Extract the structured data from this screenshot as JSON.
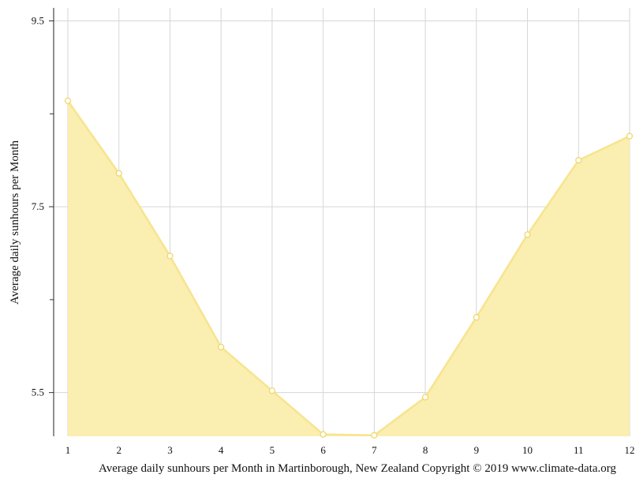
{
  "chart_data": {
    "type": "area",
    "x": [
      1,
      2,
      3,
      4,
      5,
      6,
      7,
      8,
      9,
      10,
      11,
      12
    ],
    "values": [
      8.64,
      7.86,
      6.97,
      5.99,
      5.52,
      5.05,
      5.04,
      5.45,
      6.31,
      7.2,
      8.0,
      8.26
    ],
    "ylabel": "Average daily sunhours per Month",
    "xlabel": "Average daily sunhours per Month in Martinborough, New Zealand Copyright © 2019 www.climate-data.org",
    "ylim": [
      5.03,
      9.64
    ],
    "xlim": [
      1,
      12
    ],
    "y_ticks": [
      "9.5",
      "7.5",
      "5.5"
    ],
    "x_ticks": [
      "1",
      "2",
      "3",
      "4",
      "5",
      "6",
      "7",
      "8",
      "9",
      "10",
      "11",
      "12"
    ],
    "grid": true,
    "colors": {
      "fill": "#faeeb0",
      "line": "#f7e48e",
      "marker_fill": "#ffffff",
      "marker_stroke": "#f0d76a",
      "grid": "#d6d6d6"
    }
  }
}
